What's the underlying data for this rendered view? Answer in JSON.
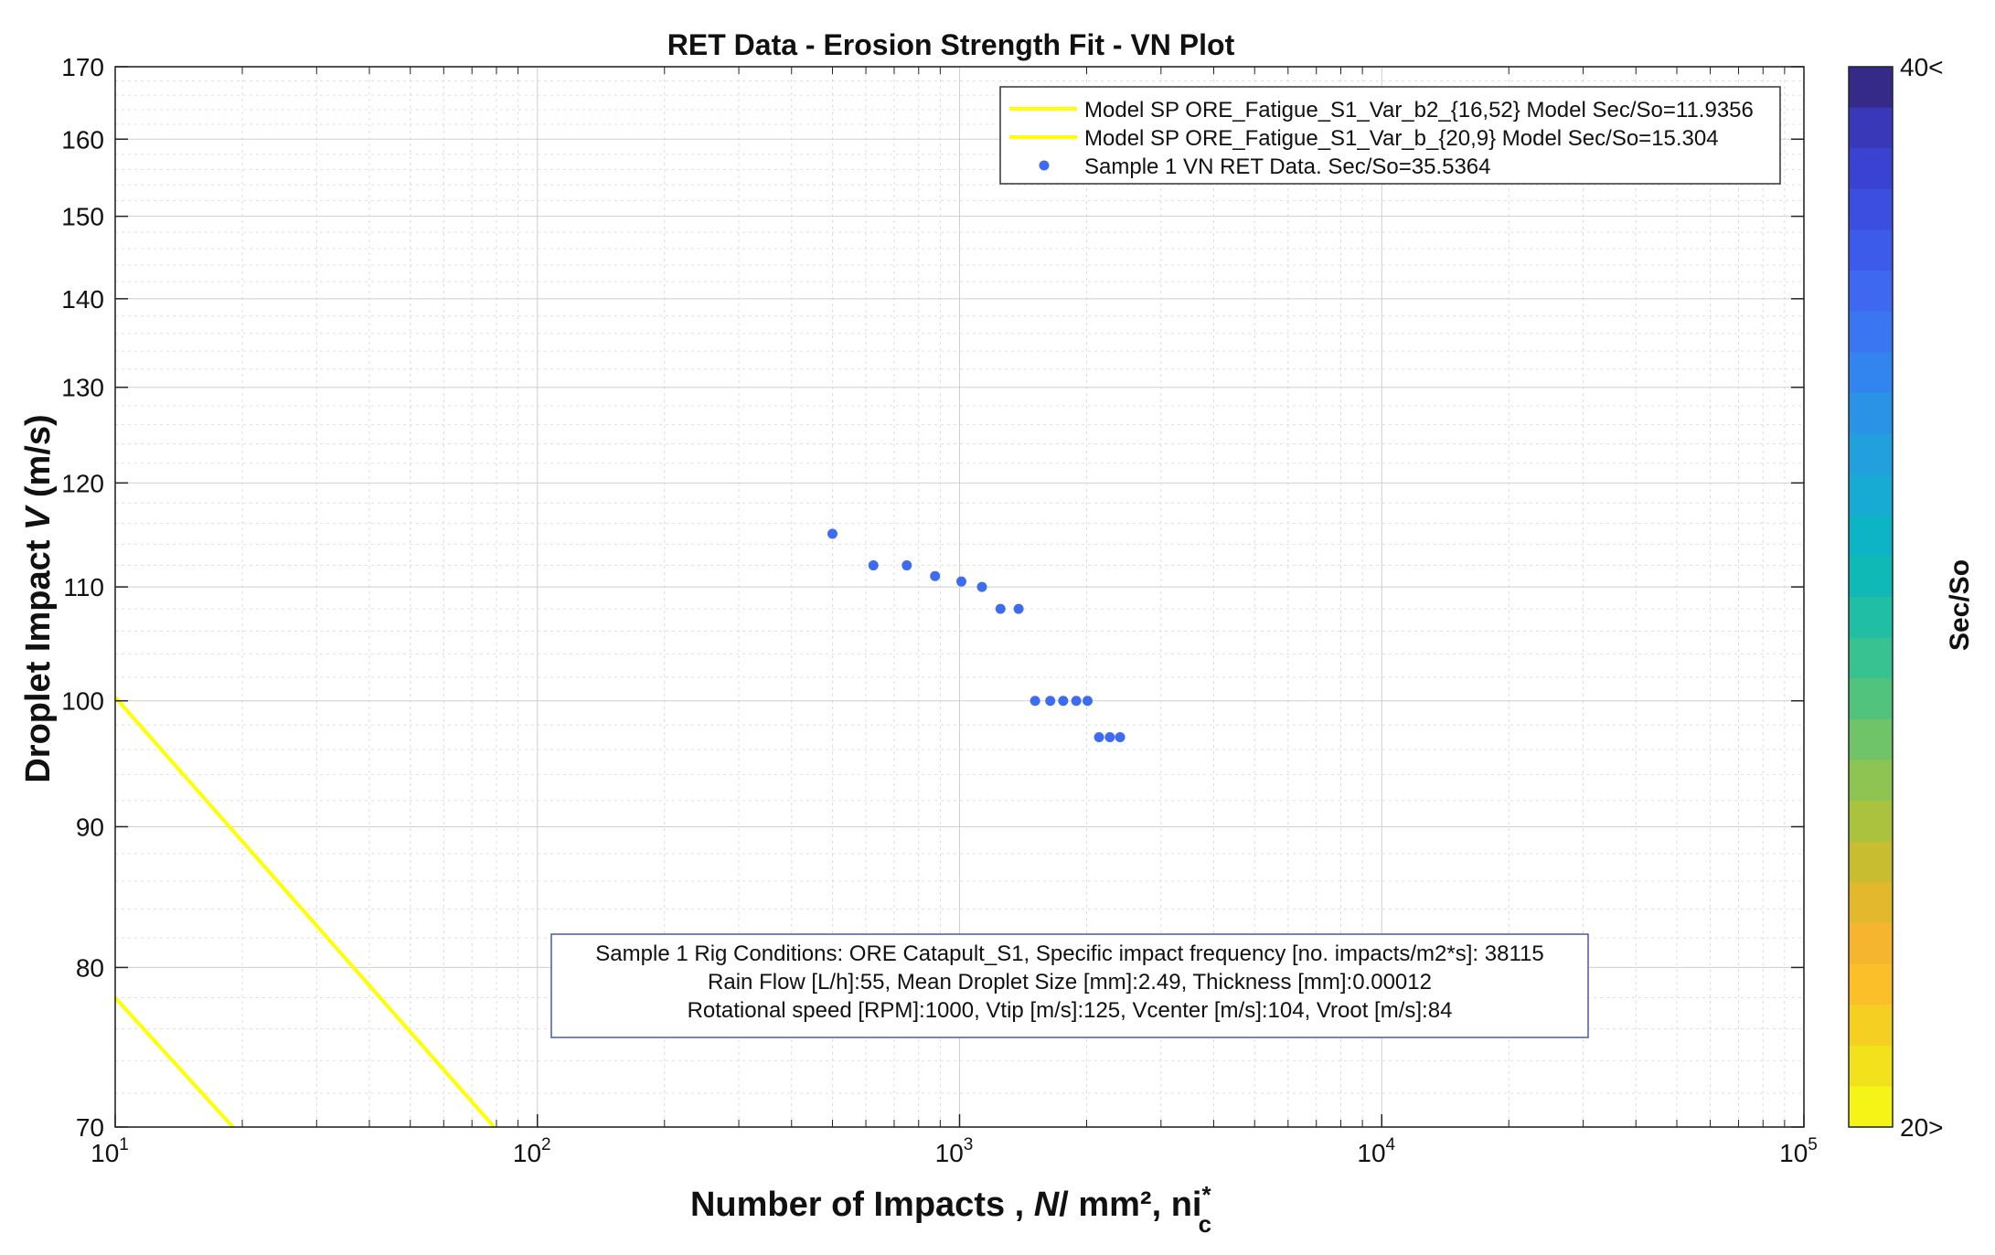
{
  "chart_data": {
    "type": "scatter",
    "title": "RET Data - Erosion Strength Fit - VN Plot",
    "xlabel": {
      "prefix": "Number of Impacts , ",
      "italic": "N",
      "unit": "/ mm²,",
      "ni": " ni",
      "ni_sup": "*",
      "ni_sub": "c"
    },
    "ylabel": {
      "prefix": "Droplet Impact ",
      "italic": "V",
      "unit": " (m/s)"
    },
    "xscale": "log",
    "yscale": "log",
    "xlim": [
      10,
      100000
    ],
    "ylim": [
      70,
      170
    ],
    "x_ticks": [
      {
        "base": "10",
        "exp": "1",
        "value": 10
      },
      {
        "base": "10",
        "exp": "2",
        "value": 100
      },
      {
        "base": "10",
        "exp": "3",
        "value": 1000
      },
      {
        "base": "10",
        "exp": "4",
        "value": 10000
      },
      {
        "base": "10",
        "exp": "5",
        "value": 100000
      }
    ],
    "y_ticks": [
      70,
      80,
      90,
      100,
      110,
      120,
      130,
      140,
      150,
      160,
      170
    ],
    "grid": true,
    "legend_position": "top-right",
    "series": [
      {
        "name": "Model SP ORE_Fatigue_S1_Var_b2_{16,52} Model Sec/So=11.9356",
        "kind": "line",
        "color": "#ffff00",
        "x": [
          10,
          79
        ],
        "y": [
          100.3,
          70
        ]
      },
      {
        "name": "Model SP ORE_Fatigue_S1_Var_b_{20,9} Model Sec/So=15.304",
        "kind": "line",
        "color": "#ffff00",
        "x": [
          10,
          19
        ],
        "y": [
          78,
          70
        ]
      },
      {
        "name": "Sample 1 VN RET Data. Sec/So=35.5364",
        "kind": "scatter",
        "color": "#3d6cf0",
        "x": [
          500,
          625,
          750,
          875,
          1010,
          1130,
          1250,
          1380,
          1510,
          1640,
          1760,
          1890,
          2010,
          2140,
          2270,
          2400
        ],
        "y": [
          115,
          112,
          112,
          111,
          110.5,
          110,
          108,
          108,
          100,
          100,
          100,
          100,
          100,
          97,
          97,
          97
        ]
      }
    ],
    "annotation": [
      "Sample 1 Rig Conditions: ORE Catapult_S1,  Specific impact frequency [no. impacts/m2*s]: 38115",
      "Rain Flow [L/h]:55, Mean Droplet Size [mm]:2.49, Thickness [mm]:0.00012",
      "Rotational speed [RPM]:1000, Vtip [m/s]:125, Vcenter [m/s]:104, Vroot [m/s]:84"
    ],
    "colorbar": {
      "label": "Sec/So",
      "top_label": "40<",
      "bottom_label": "20>",
      "colors": [
        "#352a87",
        "#3838b8",
        "#3a43d1",
        "#3b4ee0",
        "#3d5bea",
        "#3e68f0",
        "#3a76f2",
        "#3285ee",
        "#2a93e6",
        "#21a0dd",
        "#17abd3",
        "#0db4c6",
        "#0fbab6",
        "#20bea4",
        "#38c191",
        "#52c37d",
        "#6fc468",
        "#8dc452",
        "#abc23f",
        "#c8bd31",
        "#e3b82c",
        "#f6b52f",
        "#fbbf29",
        "#f5d023",
        "#f1e21c",
        "#f5f416"
      ]
    }
  }
}
